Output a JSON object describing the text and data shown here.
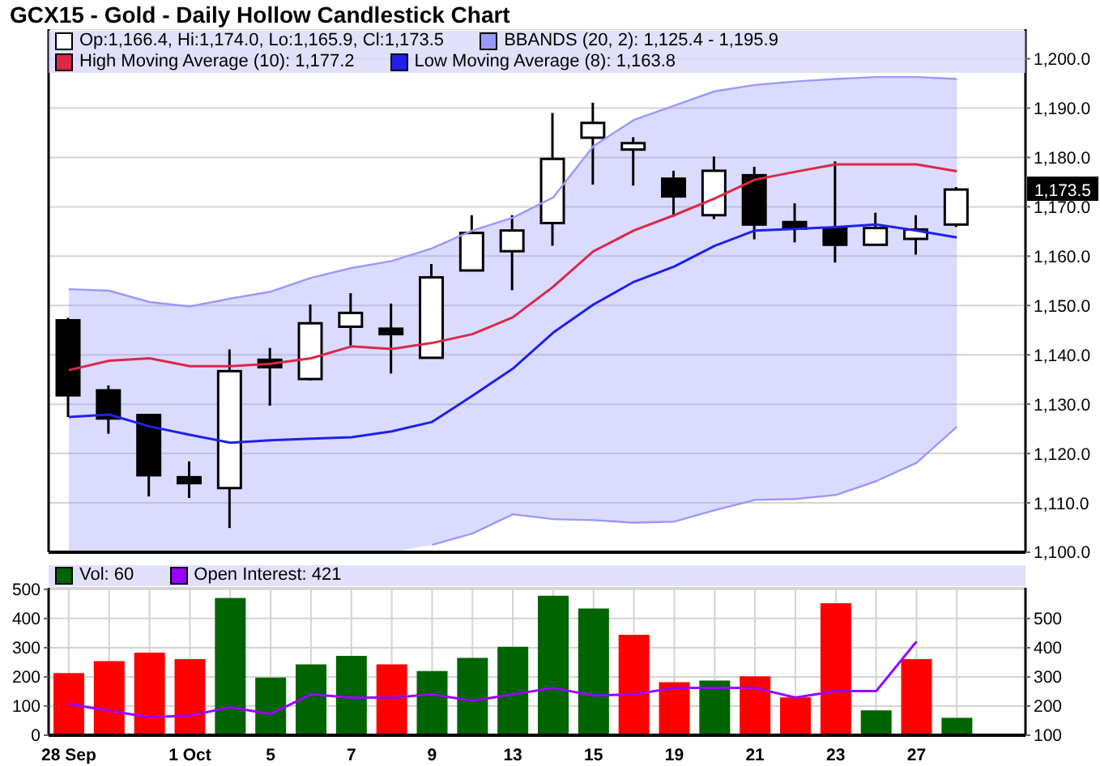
{
  "chart_data": [
    {
      "type": "candlestick",
      "title": "GCX15 - Gold - Daily Hollow Candlestick Chart",
      "categories": [
        null,
        null,
        null,
        null,
        null,
        null,
        null,
        null,
        null,
        null,
        null,
        null,
        null,
        null,
        null,
        null,
        null,
        null,
        null,
        null,
        null,
        null,
        null
      ],
      "tick_labels": "y",
      "ylim": [
        1100,
        1206
      ],
      "yticks": [
        {
          "value": 1100,
          "label": "1,100.0"
        },
        {
          "value": 1110,
          "label": "1,110.0"
        },
        {
          "value": 1120,
          "label": "1,120.0"
        },
        {
          "value": 1130,
          "label": "1,130.0"
        },
        {
          "value": 1140,
          "label": "1,140.0"
        },
        {
          "value": 1150,
          "label": "1,150.0"
        },
        {
          "value": 1160,
          "label": "1,160.0"
        },
        {
          "value": 1170,
          "label": "1,170.0"
        },
        {
          "value": 1180,
          "label": "1,180.0"
        },
        {
          "value": 1190,
          "label": "1,190.0"
        },
        {
          "value": 1200,
          "label": "1,200.0"
        }
      ],
      "grid": true,
      "legend": "top left",
      "annotations": [
        "1,173.5"
      ],
      "series": [
        {
          "name": "Op:1,166.4, Hi:1,174.0, Lo:1,165.9, Cl:1,173.5",
          "color": "#ffffff",
          "colors": [
            "#000000",
            "#000000",
            "#000000",
            "#000000",
            "#ffffff",
            "#000000",
            "#ffffff",
            "#ffffff",
            "#000000",
            "#ffffff",
            "#ffffff",
            "#ffffff",
            "#ffffff",
            "#ffffff",
            "#ffffff",
            "#000000",
            "#ffffff",
            "#000000",
            "#000000",
            "#000000",
            "#ffffff",
            "#ffffff",
            "#ffffff"
          ],
          "ohlc": [
            [
              1147.0,
              1147.5,
              1127.4,
              1131.8
            ],
            [
              1132.8,
              1133.8,
              1124.0,
              1127.1
            ],
            [
              1127.8,
              1127.8,
              1111.3,
              1115.6
            ],
            [
              1115.2,
              1118.4,
              1111.0,
              1114.0
            ],
            [
              1113.0,
              1141.1,
              1104.9,
              1136.7
            ],
            [
              1139.0,
              1141.4,
              1129.7,
              1137.5
            ],
            [
              1135.1,
              1150.2,
              1134.8,
              1146.4
            ],
            [
              1145.7,
              1152.5,
              1141.9,
              1148.5
            ],
            [
              1145.3,
              1150.4,
              1136.2,
              1144.2
            ],
            [
              1139.4,
              1158.4,
              1139.4,
              1155.7
            ],
            [
              1157.1,
              1168.3,
              1157.1,
              1164.7
            ],
            [
              1161.0,
              1168.3,
              1153.1,
              1165.2
            ],
            [
              1166.7,
              1189.0,
              1162.1,
              1179.7
            ],
            [
              1184.0,
              1191.1,
              1174.5,
              1187.0
            ],
            [
              1181.6,
              1184.1,
              1174.3,
              1182.9
            ],
            [
              1175.7,
              1177.3,
              1168.0,
              1172.1
            ],
            [
              1168.3,
              1180.2,
              1167.5,
              1177.3
            ],
            [
              1176.4,
              1178.1,
              1163.4,
              1166.4
            ],
            [
              1166.9,
              1170.7,
              1162.8,
              1165.6
            ],
            [
              1165.7,
              1179.2,
              1158.7,
              1162.3
            ],
            [
              1162.3,
              1168.8,
              1162.3,
              1165.7
            ],
            [
              1163.5,
              1168.3,
              1160.3,
              1165.4
            ],
            [
              1166.4,
              1174.0,
              1165.9,
              1173.5
            ]
          ]
        },
        {
          "type": "area",
          "name": "BBANDS (20, 2): 1,125.4 - 1,195.9",
          "color": "#9999ff",
          "values": [
            1153.3,
            1153.0,
            1150.7,
            1149.8,
            1151.4,
            1152.8,
            1155.6,
            1157.6,
            1159.0,
            1161.6,
            1165.2,
            1167.8,
            1171.9,
            1182.3,
            1187.6,
            1190.5,
            1193.4,
            1194.7,
            1195.4,
            1195.9,
            1196.3,
            1196.3,
            1195.9
          ]
        },
        {
          "type": "line",
          "color": "#9999ff",
          "values": [
            null,
            null,
            null,
            null,
            null,
            null,
            null,
            null,
            null,
            1101.5,
            1103.8,
            1107.7,
            1106.7,
            1106.5,
            1106.0,
            1106.2,
            1108.5,
            1110.6,
            1110.8,
            1111.6,
            1114.4,
            1118.1,
            1125.4
          ]
        },
        {
          "type": "line",
          "name": "High Moving Average (10): 1,177.2",
          "color": "#dc2848",
          "values": [
            1136.9,
            1138.8,
            1139.3,
            1137.7,
            1137.7,
            1138.2,
            1139.3,
            1141.7,
            1141.2,
            1142.4,
            1144.2,
            1147.6,
            1153.8,
            1161.0,
            1165.2,
            1168.3,
            1171.7,
            1175.5,
            1177.1,
            1178.6,
            1178.6,
            1178.6,
            1177.2
          ]
        },
        {
          "type": "line",
          "name": "Low Moving Average (8): 1,163.8",
          "color": "#2020ee",
          "values": [
            1127.4,
            1127.9,
            1125.5,
            1123.8,
            1122.2,
            1122.7,
            1123.0,
            1123.3,
            1124.5,
            1126.4,
            1131.7,
            1137.2,
            1144.5,
            1150.2,
            1154.8,
            1157.9,
            1162.1,
            1165.2,
            1165.5,
            1165.9,
            1166.4,
            1165.2,
            1163.8
          ]
        }
      ]
    },
    {
      "type": "bar",
      "categories": [
        "28 Sep",
        null,
        null,
        "1 Oct",
        null,
        "5",
        null,
        "7",
        null,
        "9",
        null,
        "13",
        null,
        "15",
        null,
        "19",
        null,
        "21",
        null,
        "23",
        null,
        "27",
        null
      ],
      "ylim": [
        0,
        505
      ],
      "yticks": [
        0,
        100,
        200,
        300,
        400,
        500
      ],
      "y2lim": [
        100,
        605
      ],
      "y2ticks": [
        100,
        200,
        300,
        400,
        500
      ],
      "grid": true,
      "legend": "top left",
      "series": [
        {
          "name": "Vol: 60",
          "color": "#006400",
          "colors": [
            "#ff0000",
            "#ff0000",
            "#ff0000",
            "#ff0000",
            "#006400",
            "#006400",
            "#006400",
            "#006400",
            "#ff0000",
            "#006400",
            "#006400",
            "#006400",
            "#006400",
            "#006400",
            "#ff0000",
            "#ff0000",
            "#006400",
            "#ff0000",
            "#ff0000",
            "#ff0000",
            "#006400",
            "#ff0000",
            "#006400"
          ],
          "values": [
            213,
            254,
            283,
            261,
            470,
            198,
            243,
            272,
            243,
            220,
            265,
            303,
            478,
            434,
            344,
            182,
            187,
            202,
            130,
            452,
            85,
            261,
            60
          ]
        },
        {
          "type": "line",
          "name": "Open Interest: 421",
          "color": "#9900ff",
          "axis": "y2",
          "values": [
            207,
            184,
            162,
            167,
            196,
            173,
            240,
            229,
            229,
            240,
            218,
            240,
            262,
            236,
            240,
            262,
            262,
            262,
            229,
            251,
            251,
            421,
            null
          ]
        }
      ]
    }
  ]
}
